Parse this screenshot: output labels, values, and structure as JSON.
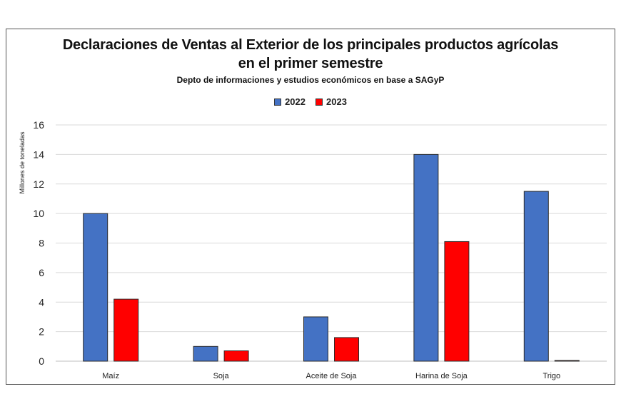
{
  "chart_data": {
    "type": "bar",
    "title_line1": "Declaraciones de Ventas al Exterior de los principales productos agrícolas",
    "title_line2": "en el primer semestre",
    "subtitle": "Depto de informaciones y estudios económicos en base a SAGyP",
    "ylabel": "Millones de toneladas",
    "xlabel": "",
    "ylim": [
      0,
      16
    ],
    "yticks": [
      0,
      2,
      4,
      6,
      8,
      10,
      12,
      14,
      16
    ],
    "grid": true,
    "legend_position": "top-center",
    "categories": [
      "Maíz",
      "Soja",
      "Aceite de Soja",
      "Harina de Soja",
      "Trigo"
    ],
    "series": [
      {
        "name": "2022",
        "color": "#4472C4",
        "values": [
          10.0,
          1.0,
          3.0,
          14.0,
          11.5
        ]
      },
      {
        "name": "2023",
        "color": "#FF0000",
        "values": [
          4.2,
          0.7,
          1.6,
          8.1,
          0.05
        ]
      }
    ]
  }
}
